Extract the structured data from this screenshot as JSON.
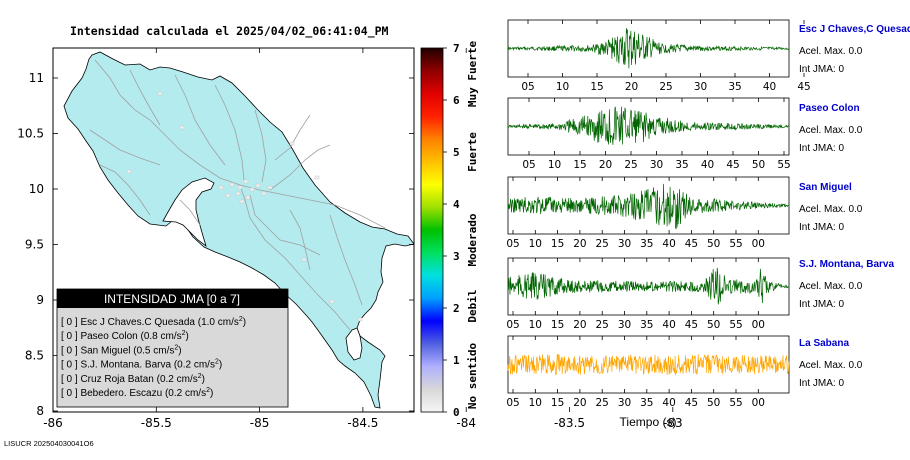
{
  "map": {
    "title": "Intensidad calculada el 2025/04/02_06:41:04_PM",
    "x_ticks": [
      "-86",
      "-85.5",
      "-85",
      "-84.5",
      "-84",
      "-83.5",
      "-83"
    ],
    "y_ticks": [
      "11",
      "10.5",
      "10",
      "9.5",
      "9",
      "8.5",
      "8"
    ],
    "land_color": "#b4ebee",
    "footer_id": "LISUCR 202504030041O6",
    "legend": {
      "header": "INTENSIDAD JMA [0 a 7]",
      "items": [
        {
          "code": "[ 0 ]",
          "name": "Esc J Chaves.C Quesada",
          "value": "(1.0 cm/s",
          "sup": "2",
          "close": ")"
        },
        {
          "code": "[ 0 ]",
          "name": "Paseo Colon",
          "value": "(0.8 cm/s",
          "sup": "2",
          "close": ")"
        },
        {
          "code": "[ 0 ]",
          "name": "San Miguel",
          "value": "(0.5 cm/s",
          "sup": "2",
          "close": ")"
        },
        {
          "code": "[ 0 ]",
          "name": "S.J. Montana. Barva",
          "value": "(0.2 cm/s",
          "sup": "2",
          "close": ")"
        },
        {
          "code": "[ 0 ]",
          "name": "Cruz Roja Batan",
          "value": "(0.2 cm/s",
          "sup": "2",
          "close": ")"
        },
        {
          "code": "[ 0 ]",
          "name": "Bebedero. Escazu",
          "value": "(0.2 cm/s",
          "sup": "2",
          "close": ")"
        }
      ]
    }
  },
  "colorbar": {
    "ticks": [
      "7",
      "6",
      "5",
      "4",
      "3",
      "2",
      "1",
      "0"
    ],
    "labels": [
      "Muy Fuerte",
      "Fuerte",
      "Moderado",
      "Debil",
      "No sentido"
    ],
    "stops": [
      "#f5f5f5",
      "#d8d8d8",
      "#b0b0ff",
      "#5060e0",
      "#0000ff",
      "#00a0ff",
      "#00e0e0",
      "#00e060",
      "#00c000",
      "#a0e000",
      "#ffff00",
      "#ffc000",
      "#ff8000",
      "#ff2000",
      "#e00000",
      "#900000",
      "#200000"
    ]
  },
  "traces": {
    "x_axis_label": "Tiempo (s)",
    "panels": [
      {
        "name": "Esc J Chaves,C Quesada",
        "accel": "Acel. Max. 0.0",
        "int": "Int JMA: 0",
        "color": "#006400",
        "ticks": [
          "05",
          "10",
          "15",
          "20",
          "25",
          "30",
          "35",
          "40",
          "45"
        ]
      },
      {
        "name": "Paseo Colon",
        "accel": "Acel. Max. 0.0",
        "int": "Int JMA: 0",
        "color": "#006400",
        "ticks": [
          "05",
          "10",
          "15",
          "20",
          "25",
          "30",
          "35",
          "40",
          "45",
          "50",
          "55"
        ]
      },
      {
        "name": "San Miguel",
        "accel": "Acel. Max. 0.0",
        "int": "Int JMA: 0",
        "color": "#006400",
        "ticks": [
          "05",
          "10",
          "15",
          "20",
          "25",
          "30",
          "35",
          "40",
          "45",
          "50",
          "55",
          "00"
        ]
      },
      {
        "name": "S.J. Montana, Barva",
        "accel": "Acel. Max. 0.0",
        "int": "Int JMA: 0",
        "color": "#006400",
        "ticks": [
          "05",
          "10",
          "15",
          "20",
          "25",
          "30",
          "35",
          "40",
          "45",
          "50",
          "55",
          "00"
        ]
      },
      {
        "name": "La Sabana",
        "accel": "Acel. Max. 0.0",
        "int": "Int JMA: 0",
        "color": "#ffa500",
        "ticks": [
          "05",
          "10",
          "15",
          "20",
          "25",
          "30",
          "35",
          "40",
          "45",
          "50",
          "55",
          "00"
        ]
      }
    ]
  }
}
